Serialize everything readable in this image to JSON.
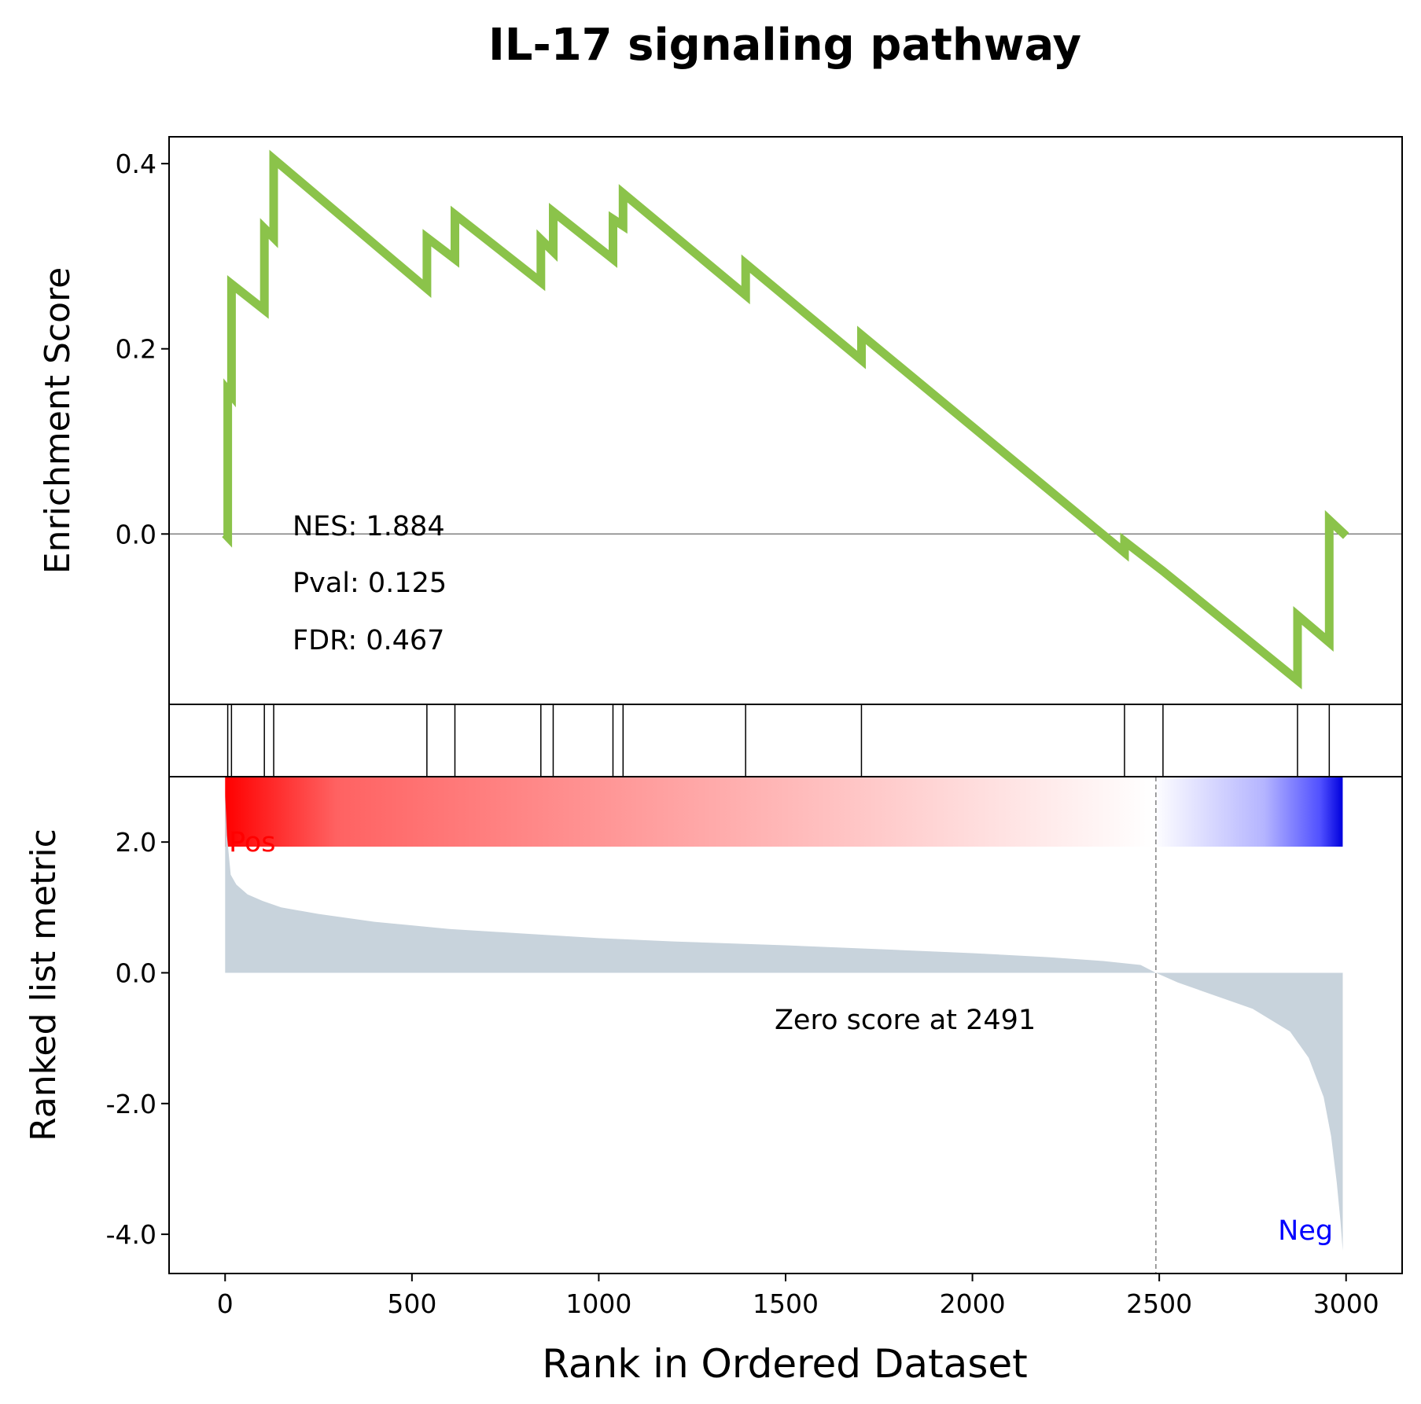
{
  "chart_data": {
    "type": "line",
    "title": "IL-17 signaling pathway",
    "xlabel": "Rank in Ordered Dataset",
    "xlim": [
      -150,
      3150
    ],
    "x_ticks": [
      0,
      500,
      1000,
      1500,
      2000,
      2500,
      3000
    ],
    "x_tick_labels": [
      "0",
      "500",
      "1000",
      "1500",
      "2000",
      "2500",
      "3000"
    ],
    "es_panel": {
      "ylabel": "Enrichment Score",
      "ylim": [
        -0.184,
        0.429
      ],
      "y_ticks": [
        0.0,
        0.2,
        0.4
      ],
      "y_tick_labels": [
        "0.0",
        "0.2",
        "0.4"
      ],
      "zero_line": true,
      "line_color": "#8bc34a",
      "series": [
        {
          "x": [
            0,
            7,
            7,
            17,
            17,
            105,
            105,
            130,
            130,
            540,
            540,
            615,
            615,
            845,
            845,
            878,
            878,
            1038,
            1038,
            1065,
            1065,
            1393,
            1393,
            1703,
            1703,
            2407,
            2407,
            2510,
            2870,
            2870,
            2955,
            2955,
            3000
          ],
          "y": [
            0.0,
            -0.003,
            0.155,
            0.15,
            0.27,
            0.242,
            0.33,
            0.32,
            0.405,
            0.265,
            0.32,
            0.297,
            0.345,
            0.272,
            0.318,
            0.305,
            0.348,
            0.297,
            0.34,
            0.333,
            0.368,
            0.258,
            0.292,
            0.188,
            0.215,
            -0.02,
            -0.008,
            -0.04,
            -0.158,
            -0.088,
            -0.117,
            0.015,
            -0.002
          ]
        }
      ],
      "annotations": [
        "NES: 1.884",
        "Pval: 0.125",
        "FDR: 0.467"
      ]
    },
    "hit_panel": {
      "hits": [
        7,
        17,
        105,
        130,
        540,
        615,
        845,
        878,
        1038,
        1065,
        1393,
        1703,
        2407,
        2510,
        2870,
        2955
      ]
    },
    "rank_panel": {
      "ylabel": "Ranked list metric",
      "ylim": [
        -4.6,
        3.0
      ],
      "y_ticks": [
        2.0,
        0.0,
        -2.0,
        -4.0
      ],
      "y_tick_labels": [
        "2.0",
        "0.0",
        "-2.0",
        "-4.0"
      ],
      "fill_color": "#c8d3dc",
      "metric": {
        "x": [
          0,
          5,
          15,
          30,
          60,
          100,
          150,
          250,
          400,
          600,
          800,
          1000,
          1200,
          1500,
          1800,
          2000,
          2200,
          2350,
          2450,
          2491,
          2550,
          2650,
          2750,
          2850,
          2900,
          2940,
          2960,
          2975,
          2985,
          2991
        ],
        "y": [
          2.75,
          2.1,
          1.5,
          1.35,
          1.2,
          1.1,
          1.0,
          0.9,
          0.78,
          0.67,
          0.6,
          0.53,
          0.48,
          0.42,
          0.35,
          0.3,
          0.24,
          0.18,
          0.12,
          0.0,
          -0.15,
          -0.35,
          -0.55,
          -0.9,
          -1.3,
          -1.9,
          -2.5,
          -3.2,
          -3.8,
          -4.25
        ]
      },
      "zero_cross": 2491,
      "zero_cross_label": "Zero score at 2491",
      "pos_label": "Pos",
      "neg_label": "Neg",
      "pos_color": "#ff0000",
      "neg_color": "#0000ff"
    },
    "n_genes": 2991
  }
}
